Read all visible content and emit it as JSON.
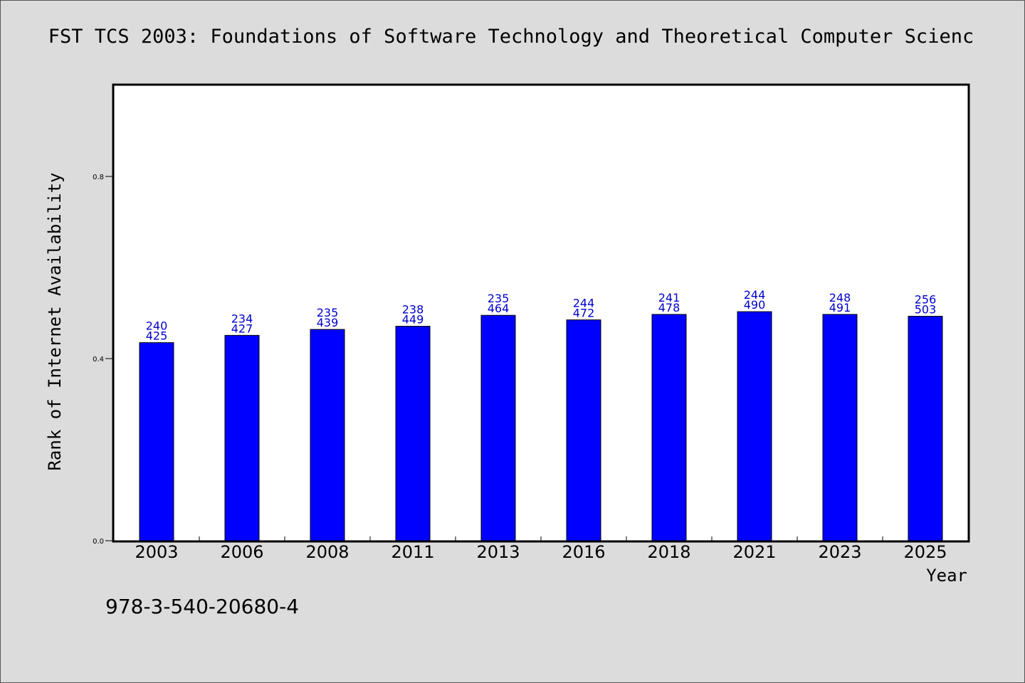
{
  "colors": {
    "background": "#dcdcdc",
    "plot_background": "#ffffff",
    "bar_fill": "#0000ff",
    "bar_stroke": "#000000",
    "label_color": "#0000cc",
    "text": "#000000"
  },
  "chart_data": {
    "type": "bar",
    "title": "FST TCS 2003: Foundations of Software Technology and Theoretical Computer Scienc",
    "xlabel": "Year",
    "ylabel": "Rank of Internet Availability",
    "footnote": "978-3-540-20680-4",
    "ylim": [
      0,
      1
    ],
    "yticks": [
      {
        "value": 0.0,
        "label": "0.0"
      },
      {
        "value": 0.4,
        "label": "0.4"
      },
      {
        "value": 0.8,
        "label": "0.8"
      }
    ],
    "grid": false,
    "legend": "none",
    "categories": [
      "2003",
      "2006",
      "2008",
      "2011",
      "2013",
      "2016",
      "2018",
      "2021",
      "2023",
      "2025"
    ],
    "values": [
      0.435,
      0.451,
      0.464,
      0.471,
      0.495,
      0.485,
      0.497,
      0.503,
      0.497,
      0.493
    ],
    "labels_top": [
      "240",
      "234",
      "235",
      "238",
      "235",
      "244",
      "241",
      "244",
      "248",
      "256"
    ],
    "labels_bottom": [
      "425",
      "427",
      "439",
      "449",
      "464",
      "472",
      "478",
      "490",
      "491",
      "503"
    ]
  }
}
